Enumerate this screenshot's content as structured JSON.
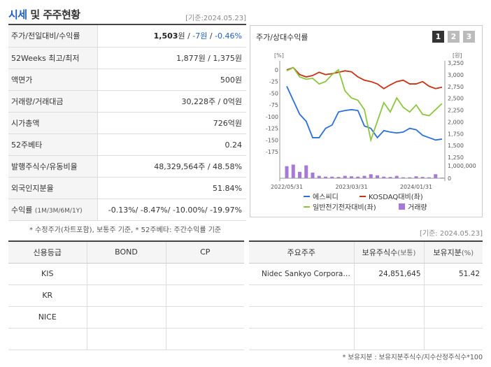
{
  "header": {
    "title_part1": "시세",
    "title_part2": "및 주주현황",
    "date": "[기준:2024.05.23]"
  },
  "quote_rows": [
    {
      "label": "주가/전일대비/수익률",
      "v1": "1,503",
      "v1_unit": "원",
      "sep1": " / ",
      "v2": "-7원",
      "sep2": " / ",
      "v3": "-0.46%"
    },
    {
      "label": "52Weeks 최고/최저",
      "value": "1,877원 / 1,375원"
    },
    {
      "label": "액면가",
      "value": "500원"
    },
    {
      "label": "거래량/거래대금",
      "value": "30,228주 / 0억원"
    },
    {
      "label": "시가총액",
      "value": "726억원"
    },
    {
      "label": "52주베타",
      "value": "0.24"
    },
    {
      "label": "발행주식수/유동비율",
      "value": "48,329,564주 / 48.58%"
    },
    {
      "label": "외국인지분율",
      "value": "51.84%"
    },
    {
      "label": "수익률",
      "label_small": "(1M/3M/6M/1Y)",
      "value": "-0.13%/ -8.47%/ -10.00%/ -19.97%"
    }
  ],
  "note1": "* 수정주가(차트포함), 보통주 기준, * 52주베타: 주간수익률 기준",
  "date_mid": "[기준: 2024.05.23]",
  "chart": {
    "title": "주가/상대수익률",
    "tabs": [
      "1",
      "2",
      "3"
    ],
    "left_unit": "[%]",
    "right_unit": "[원]",
    "left_ticks": [
      "0",
      "-25",
      "-50",
      "-75",
      "-100",
      "-125",
      "-150",
      "-175"
    ],
    "right_ticks": [
      "3,250",
      "3,000",
      "2,750",
      "2,500",
      "2,250",
      "2,000",
      "1,750",
      "1,500",
      "1,250"
    ],
    "vol_tick": "1,000,000",
    "vol_zero": "0",
    "x_labels": [
      "2022/05/31",
      "2023/03/31",
      "2024/01/31"
    ],
    "legend": [
      "에스씨디",
      "KOSDAQ대비(좌)",
      "일반전기전자대비(좌)",
      "거래량"
    ],
    "colors": {
      "stock": "#2a6fdb",
      "kosdaq": "#c83214",
      "sector": "#8cc63f",
      "volume": "#a678d8"
    }
  },
  "chart_data": {
    "type": "line",
    "x": [
      "2022/05/31",
      "2022/06/30",
      "2022/07/31",
      "2022/08/31",
      "2022/09/30",
      "2022/10/31",
      "2022/11/30",
      "2022/12/31",
      "2023/01/31",
      "2023/02/28",
      "2023/03/31",
      "2023/04/30",
      "2023/05/31",
      "2023/06/30",
      "2023/07/31",
      "2023/08/31",
      "2023/09/30",
      "2023/10/31",
      "2023/11/30",
      "2023/12/31",
      "2024/01/31",
      "2024/02/29",
      "2024/03/31",
      "2024/04/30",
      "2024/05/23"
    ],
    "series": [
      {
        "name": "에스씨디",
        "axis": "left",
        "values": [
          -35,
          -65,
          -95,
          -110,
          -145,
          -145,
          -125,
          -118,
          -90,
          -87,
          -85,
          -87,
          -120,
          -125,
          -145,
          -130,
          -133,
          -135,
          -133,
          -125,
          -128,
          -140,
          -145,
          -150,
          -148
        ]
      },
      {
        "name": "KOSDAQ대비(좌)",
        "axis": "left",
        "values": [
          0,
          5,
          -10,
          -15,
          -12,
          -5,
          -10,
          -8,
          -5,
          -2,
          -4,
          -15,
          -22,
          -25,
          -30,
          -40,
          -32,
          -25,
          -22,
          -30,
          -30,
          -25,
          -35,
          -40,
          -37
        ]
      },
      {
        "name": "일반전기전자대비(좌)",
        "axis": "left",
        "values": [
          -2,
          5,
          -15,
          -20,
          -18,
          -30,
          -25,
          -10,
          0,
          -45,
          -60,
          -65,
          -85,
          -150,
          -110,
          -70,
          -90,
          -60,
          -80,
          -90,
          -75,
          -95,
          -98,
          -85,
          -72
        ]
      },
      {
        "name": "거래량",
        "axis": "volume",
        "values": [
          750000,
          850000,
          400000,
          800000,
          350000,
          150000,
          100000,
          100000,
          80000,
          150000,
          120000,
          100000,
          150000,
          250000,
          180000,
          100000,
          80000,
          150000,
          60000,
          60000,
          120000,
          80000,
          60000,
          250000,
          40000
        ]
      }
    ],
    "left_ylim": [
      -175,
      0
    ],
    "right_ylim": [
      1250,
      3250
    ],
    "volume_ylim": [
      0,
      1000000
    ]
  },
  "credit": {
    "headers": [
      "신용등급",
      "BOND",
      "CP"
    ],
    "rows": [
      [
        "KIS",
        "",
        ""
      ],
      [
        "KR",
        "",
        ""
      ],
      [
        "NICE",
        "",
        ""
      ],
      [
        "",
        "",
        ""
      ]
    ]
  },
  "holders": {
    "headers": [
      "주요주주",
      "보유주식수",
      "(보통)",
      "보유지분",
      "(%)"
    ],
    "rows": [
      [
        "Nidec Sankyo Corpora…",
        "24,851,645",
        "51.42"
      ],
      [
        "",
        "",
        ""
      ],
      [
        "",
        "",
        ""
      ],
      [
        "",
        "",
        ""
      ]
    ]
  },
  "note2": "* 보유지분 : 보유지분주식수/지수산정주식수*100"
}
